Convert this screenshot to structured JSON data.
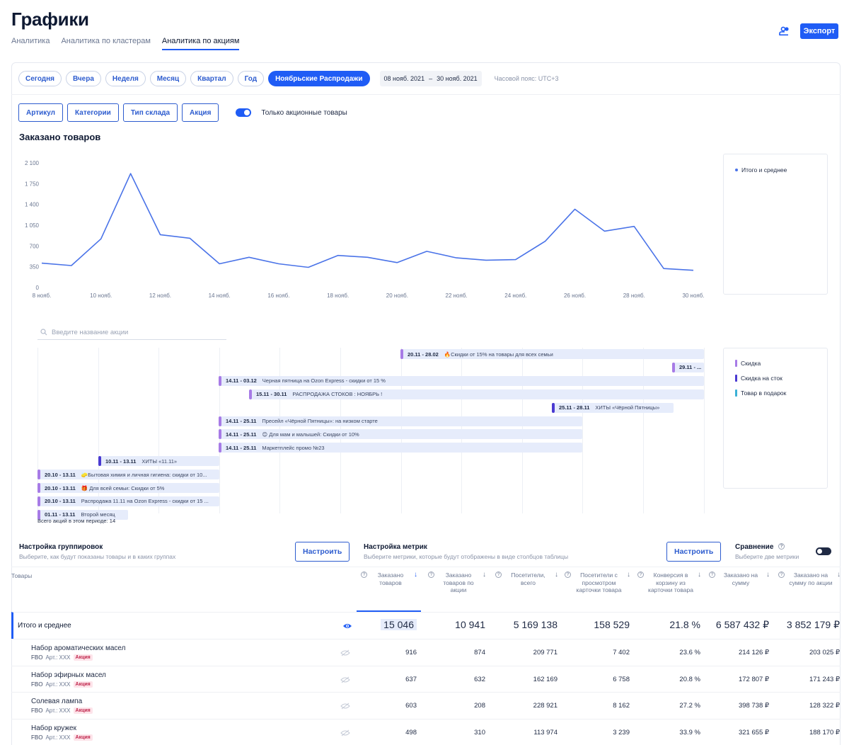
{
  "page": {
    "title": "Графики"
  },
  "tabs": [
    "Аналитика",
    "Аналитика по кластерам",
    "Аналитика по акциям"
  ],
  "active_tab": 2,
  "header": {
    "export_label": "Экспорт"
  },
  "periods": [
    "Сегодня",
    "Вчера",
    "Неделя",
    "Месяц",
    "Квартал",
    "Год",
    "Ноябрьские Распродажи"
  ],
  "active_period": 6,
  "daterange": {
    "from": "08 нояб. 2021",
    "dash": "–",
    "to": "30 нояб. 2021"
  },
  "timezone": "Часовой пояс: UTC+3",
  "filters": [
    "Артикул",
    "Категории",
    "Тип склада",
    "Акция"
  ],
  "only_promo_label": "Только акционные товары",
  "chart_title": "Заказано товаров",
  "chart_data": {
    "type": "line",
    "title": "Заказано товаров",
    "x": [
      "8 нояб.",
      "9 нояб.",
      "10 нояб.",
      "11 нояб.",
      "12 нояб.",
      "13 нояб.",
      "14 нояб.",
      "15 нояб.",
      "16 нояб.",
      "17 нояб.",
      "18 нояб.",
      "19 нояб.",
      "20 нояб.",
      "21 нояб.",
      "22 нояб.",
      "23 нояб.",
      "24 нояб.",
      "25 нояб.",
      "26 нояб.",
      "27 нояб.",
      "28 нояб.",
      "29 нояб.",
      "30 нояб."
    ],
    "x_tick_labels": [
      "8 нояб.",
      "10 нояб.",
      "12 нояб.",
      "14 нояб.",
      "16 нояб.",
      "18 нояб.",
      "20 нояб.",
      "22 нояб.",
      "24 нояб.",
      "26 нояб.",
      "28 нояб.",
      "30 нояб."
    ],
    "y_tick_labels": [
      "0",
      "350",
      "700",
      "1 050",
      "1 400",
      "1 750",
      "2 100"
    ],
    "ylim": [
      0,
      2100
    ],
    "series": [
      {
        "name": "Итого и среднее",
        "color": "#4a73e8",
        "values": [
          410,
          370,
          820,
          1920,
          890,
          830,
          400,
          510,
          400,
          340,
          540,
          510,
          420,
          610,
          500,
          460,
          470,
          780,
          1320,
          950,
          1030,
          320,
          290
        ]
      }
    ],
    "legend": "right",
    "grid": false
  },
  "promo_search_placeholder": "Введите название акции",
  "promo_legend": [
    {
      "label": "Скидка",
      "color": "#a77be6"
    },
    {
      "label": "Скидка на сток",
      "color": "#4a3ad1"
    },
    {
      "label": "Товар в подарок",
      "color": "#3bb1d6"
    }
  ],
  "promos": [
    {
      "dates": "20.11 - 28.02",
      "name": "🔥Скидки от 15% на товары для всех семьи",
      "type": 0
    },
    {
      "dates": "29.11 - ...",
      "name": "",
      "type": 0
    },
    {
      "dates": "14.11 - 03.12",
      "name": "Черная пятница на Ozon Express - скидки от 15 %",
      "type": 0
    },
    {
      "dates": "15.11 - 30.11",
      "name": "РАСПРОДАЖА СТОКОВ : НОЯБРЬ !",
      "type": 0
    },
    {
      "dates": "25.11 - 28.11",
      "name": "ХИТЫ «Чёрной Пятницы»",
      "type": 1
    },
    {
      "dates": "14.11 - 25.11",
      "name": "Пресейл «Чёрной Пятницы»: на низком старте",
      "type": 0
    },
    {
      "dates": "14.11 - 25.11",
      "name": "😊 Для мам и малышей: Скидки от 10%",
      "type": 0
    },
    {
      "dates": "14.11 - 25.11",
      "name": "Маркетплейс промо №23",
      "type": 0
    },
    {
      "dates": "10.11 - 13.11",
      "name": "ХИТЫ «11.11»",
      "type": 1
    },
    {
      "dates": "20.10 - 13.11",
      "name": "🧽Бытовая химия и личная гигиена: скидки от 10...",
      "type": 0
    },
    {
      "dates": "20.10 - 13.11",
      "name": "🎁 Для всей семьи: Скидки от 5%",
      "type": 0
    },
    {
      "dates": "20.10 - 13.11",
      "name": "Распродажа 11.11 на Ozon Express - скидки от 15 ...",
      "type": 0
    },
    {
      "dates": "01.11 - 13.11",
      "name": "Второй месяц",
      "type": 0
    }
  ],
  "promo_total": "Всего акций в этом периоде: 14",
  "grouping": {
    "title": "Настройка группировок",
    "subtitle": "Выберите, как будут показаны товары и в каких группах",
    "button": "Настроить"
  },
  "metrics_cfg": {
    "title": "Настройка метрик",
    "subtitle": "Выберите метрики, которые будут отображены в виде столбцов таблицы",
    "button": "Настроить"
  },
  "comparison": {
    "title": "Сравнение",
    "subtitle": "Выберите две метрики"
  },
  "table": {
    "first_col": "Товары",
    "columns": [
      "Заказано товаров",
      "Заказано товаров по акции",
      "Посетители, всего",
      "Посетители с просмотром карточки товара",
      "Конверсия в корзину из карточки товара",
      "Заказано на сумму",
      "Заказано на сумму по акции"
    ],
    "total": {
      "name": "Итого и среднее",
      "values": [
        "15 046",
        "10 941",
        "5 169 138",
        "158 529",
        "21.8 %",
        "6 587 432 ₽",
        "3 852 179 ₽"
      ]
    },
    "rows": [
      {
        "name": "Набор ароматических масел",
        "fbo": "FBO",
        "art": "Арт.: XXX",
        "badge": "Акция",
        "values": [
          "916",
          "874",
          "209 771",
          "7 402",
          "23.6 %",
          "214 126 ₽",
          "203 025 ₽"
        ]
      },
      {
        "name": "Набор эфирных масел",
        "fbo": "FBO",
        "art": "Арт.: XXX",
        "badge": "Акция",
        "values": [
          "637",
          "632",
          "162 169",
          "6 758",
          "20.8 %",
          "172 807 ₽",
          "171 243 ₽"
        ]
      },
      {
        "name": "Солевая лампа",
        "fbo": "FBO",
        "art": "Арт.: XXX",
        "badge": "Акция",
        "values": [
          "603",
          "208",
          "228 921",
          "8 162",
          "27.2 %",
          "398 738 ₽",
          "128 322 ₽"
        ]
      },
      {
        "name": "Набор кружек",
        "fbo": "FBO",
        "art": "Арт.: XXX",
        "badge": "Акция",
        "values": [
          "498",
          "310",
          "113 974",
          "3 239",
          "33.9 %",
          "321 655 ₽",
          "188 170 ₽"
        ]
      }
    ]
  }
}
